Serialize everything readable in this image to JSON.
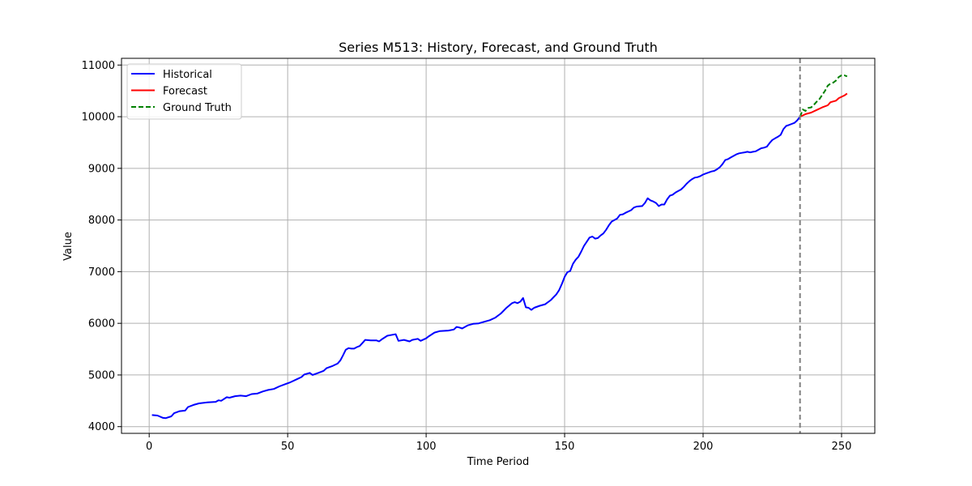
{
  "chart_data": {
    "type": "line",
    "title": "Series M513: History, Forecast, and Ground Truth",
    "xlabel": "Time Period",
    "ylabel": "Value",
    "xlim": [
      -10,
      262
    ],
    "ylim": [
      3870,
      11130
    ],
    "xticks": [
      0,
      50,
      100,
      150,
      200,
      250
    ],
    "yticks": [
      4000,
      5000,
      6000,
      7000,
      8000,
      9000,
      10000,
      11000
    ],
    "grid": true,
    "legend_position": "top-left",
    "forecast_start_marker": 235,
    "series": [
      {
        "name": "Historical",
        "color": "#0000ff",
        "dash": "solid",
        "points": [
          [
            1,
            4225
          ],
          [
            3,
            4215
          ],
          [
            5,
            4170
          ],
          [
            6,
            4165
          ],
          [
            8,
            4200
          ],
          [
            9,
            4260
          ],
          [
            11,
            4300
          ],
          [
            13,
            4310
          ],
          [
            14,
            4380
          ],
          [
            16,
            4420
          ],
          [
            18,
            4450
          ],
          [
            21,
            4470
          ],
          [
            24,
            4480
          ],
          [
            25,
            4510
          ],
          [
            26,
            4500
          ],
          [
            28,
            4570
          ],
          [
            29,
            4560
          ],
          [
            31,
            4590
          ],
          [
            33,
            4600
          ],
          [
            35,
            4590
          ],
          [
            37,
            4630
          ],
          [
            39,
            4640
          ],
          [
            41,
            4680
          ],
          [
            43,
            4710
          ],
          [
            45,
            4730
          ],
          [
            47,
            4780
          ],
          [
            49,
            4820
          ],
          [
            51,
            4860
          ],
          [
            53,
            4910
          ],
          [
            55,
            4960
          ],
          [
            56,
            5010
          ],
          [
            58,
            5040
          ],
          [
            59,
            5000
          ],
          [
            61,
            5040
          ],
          [
            63,
            5080
          ],
          [
            64,
            5130
          ],
          [
            66,
            5170
          ],
          [
            68,
            5220
          ],
          [
            69,
            5280
          ],
          [
            70,
            5380
          ],
          [
            71,
            5490
          ],
          [
            72,
            5520
          ],
          [
            73,
            5510
          ],
          [
            74,
            5510
          ],
          [
            75,
            5540
          ],
          [
            76,
            5560
          ],
          [
            77,
            5620
          ],
          [
            78,
            5680
          ],
          [
            80,
            5670
          ],
          [
            82,
            5670
          ],
          [
            83,
            5650
          ],
          [
            84,
            5690
          ],
          [
            86,
            5760
          ],
          [
            88,
            5780
          ],
          [
            89,
            5790
          ],
          [
            90,
            5660
          ],
          [
            92,
            5680
          ],
          [
            94,
            5650
          ],
          [
            95,
            5680
          ],
          [
            97,
            5700
          ],
          [
            98,
            5660
          ],
          [
            100,
            5710
          ],
          [
            101,
            5750
          ],
          [
            103,
            5820
          ],
          [
            105,
            5850
          ],
          [
            108,
            5860
          ],
          [
            110,
            5880
          ],
          [
            111,
            5930
          ],
          [
            112,
            5920
          ],
          [
            113,
            5900
          ],
          [
            115,
            5960
          ],
          [
            117,
            5990
          ],
          [
            119,
            6000
          ],
          [
            121,
            6030
          ],
          [
            123,
            6060
          ],
          [
            125,
            6110
          ],
          [
            127,
            6190
          ],
          [
            129,
            6300
          ],
          [
            131,
            6390
          ],
          [
            132,
            6410
          ],
          [
            133,
            6390
          ],
          [
            134,
            6420
          ],
          [
            135,
            6490
          ],
          [
            136,
            6310
          ],
          [
            137,
            6300
          ],
          [
            138,
            6260
          ],
          [
            139,
            6300
          ],
          [
            141,
            6340
          ],
          [
            143,
            6370
          ],
          [
            145,
            6450
          ],
          [
            147,
            6560
          ],
          [
            148,
            6640
          ],
          [
            149,
            6760
          ],
          [
            150,
            6900
          ],
          [
            151,
            6990
          ],
          [
            152,
            7010
          ],
          [
            153,
            7150
          ],
          [
            154,
            7230
          ],
          [
            155,
            7290
          ],
          [
            156,
            7390
          ],
          [
            157,
            7500
          ],
          [
            158,
            7580
          ],
          [
            159,
            7660
          ],
          [
            160,
            7680
          ],
          [
            161,
            7640
          ],
          [
            162,
            7650
          ],
          [
            163,
            7700
          ],
          [
            164,
            7740
          ],
          [
            165,
            7810
          ],
          [
            166,
            7900
          ],
          [
            167,
            7970
          ],
          [
            168,
            8000
          ],
          [
            169,
            8030
          ],
          [
            170,
            8100
          ],
          [
            171,
            8110
          ],
          [
            172,
            8140
          ],
          [
            174,
            8190
          ],
          [
            175,
            8240
          ],
          [
            176,
            8260
          ],
          [
            178,
            8270
          ],
          [
            179,
            8330
          ],
          [
            180,
            8420
          ],
          [
            181,
            8380
          ],
          [
            182,
            8360
          ],
          [
            183,
            8330
          ],
          [
            184,
            8270
          ],
          [
            185,
            8300
          ],
          [
            186,
            8300
          ],
          [
            187,
            8400
          ],
          [
            188,
            8470
          ],
          [
            189,
            8490
          ],
          [
            190,
            8530
          ],
          [
            191,
            8560
          ],
          [
            192,
            8590
          ],
          [
            193,
            8640
          ],
          [
            194,
            8700
          ],
          [
            195,
            8750
          ],
          [
            196,
            8790
          ],
          [
            197,
            8820
          ],
          [
            198,
            8830
          ],
          [
            199,
            8850
          ],
          [
            200,
            8880
          ],
          [
            201,
            8900
          ],
          [
            202,
            8920
          ],
          [
            203,
            8940
          ],
          [
            204,
            8950
          ],
          [
            205,
            8980
          ],
          [
            206,
            9020
          ],
          [
            207,
            9080
          ],
          [
            208,
            9160
          ],
          [
            209,
            9180
          ],
          [
            210,
            9210
          ],
          [
            211,
            9240
          ],
          [
            212,
            9270
          ],
          [
            213,
            9290
          ],
          [
            214,
            9300
          ],
          [
            215,
            9310
          ],
          [
            216,
            9320
          ],
          [
            217,
            9310
          ],
          [
            218,
            9320
          ],
          [
            219,
            9330
          ],
          [
            220,
            9360
          ],
          [
            221,
            9390
          ],
          [
            222,
            9400
          ],
          [
            223,
            9420
          ],
          [
            224,
            9490
          ],
          [
            225,
            9550
          ],
          [
            226,
            9580
          ],
          [
            227,
            9610
          ],
          [
            228,
            9650
          ],
          [
            229,
            9760
          ],
          [
            230,
            9820
          ],
          [
            231,
            9840
          ],
          [
            232,
            9860
          ],
          [
            233,
            9880
          ],
          [
            234,
            9930
          ],
          [
            235,
            10000
          ]
        ]
      },
      {
        "name": "Forecast",
        "color": "#ff0000",
        "dash": "solid",
        "points": [
          [
            235,
            10000
          ],
          [
            237,
            10050
          ],
          [
            239,
            10080
          ],
          [
            241,
            10130
          ],
          [
            243,
            10180
          ],
          [
            245,
            10220
          ],
          [
            246,
            10280
          ],
          [
            248,
            10310
          ],
          [
            249,
            10360
          ],
          [
            251,
            10410
          ],
          [
            252,
            10450
          ]
        ]
      },
      {
        "name": "Ground Truth",
        "color": "#008000",
        "dash": "dashed",
        "points": [
          [
            235,
            10000
          ],
          [
            236,
            10140
          ],
          [
            237,
            10110
          ],
          [
            238,
            10170
          ],
          [
            239,
            10180
          ],
          [
            240,
            10230
          ],
          [
            241,
            10290
          ],
          [
            242,
            10340
          ],
          [
            243,
            10420
          ],
          [
            244,
            10500
          ],
          [
            245,
            10600
          ],
          [
            246,
            10640
          ],
          [
            247,
            10660
          ],
          [
            248,
            10700
          ],
          [
            249,
            10770
          ],
          [
            250,
            10800
          ],
          [
            251,
            10800
          ],
          [
            252,
            10780
          ]
        ]
      }
    ]
  }
}
